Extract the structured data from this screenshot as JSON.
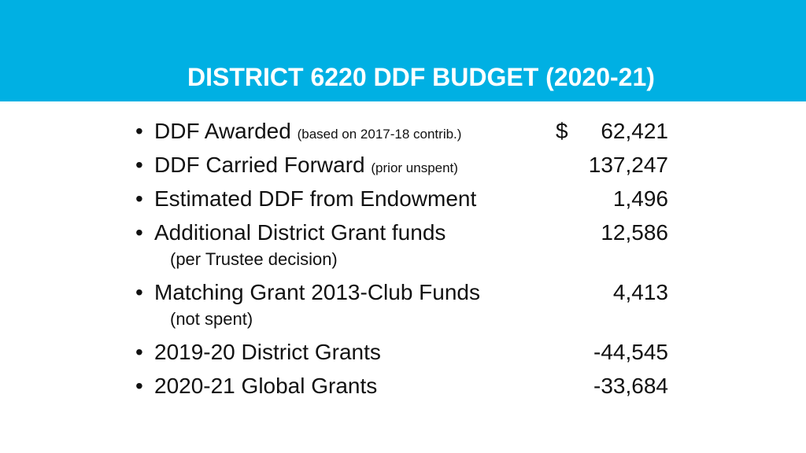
{
  "slide": {
    "title": "DISTRICT 6220 DDF BUDGET (2020-21)",
    "colors": {
      "header_background": "#00b0e3",
      "title_text": "#ffffff",
      "body_text": "#111111"
    }
  },
  "budget": {
    "currency_symbol": "$",
    "items": [
      {
        "bullet": "•",
        "label": "DDF Awarded",
        "note": "(based on 2017-18 contrib.)",
        "subnote": "",
        "amount": "62,421"
      },
      {
        "bullet": "•",
        "label": "DDF Carried Forward",
        "note": "(prior unspent)",
        "subnote": "",
        "amount": "137,247"
      },
      {
        "bullet": "•",
        "label": "Estimated DDF from Endowment",
        "note": "",
        "subnote": "",
        "amount": "1,496"
      },
      {
        "bullet": "•",
        "label": "Additional District Grant funds",
        "note": "",
        "subnote": "(per Trustee decision)",
        "amount": "12,586"
      },
      {
        "bullet": "•",
        "label": "Matching Grant 2013-Club Funds",
        "note": "",
        "subnote": "(not spent)",
        "amount": "4,413"
      },
      {
        "bullet": "•",
        "label": "2019-20 District Grants",
        "note": "",
        "subnote": "",
        "amount": "-44,545"
      },
      {
        "bullet": "•",
        "label": "2020-21 Global Grants",
        "note": "",
        "subnote": "",
        "amount": "-33,684"
      }
    ]
  }
}
